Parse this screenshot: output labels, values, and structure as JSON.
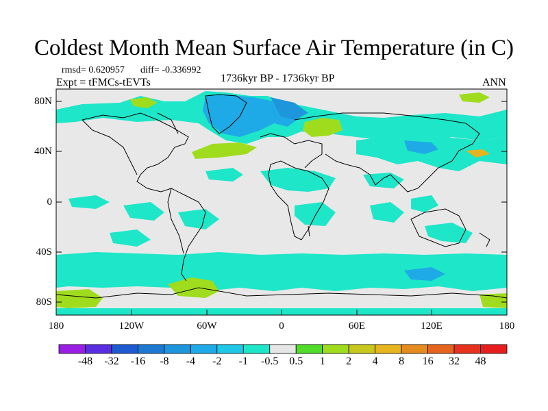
{
  "title": "Coldest Month Mean Surface Air Temperature (in C)",
  "stats": {
    "rmsd_label": "rmsd= 0.620957",
    "diff_label": "diff= -0.336992"
  },
  "experiment": "Expt = tFMCs-tEVTs",
  "period": "1736kyr BP - 1736kyr BP",
  "season": "ANN",
  "lat_labels": [
    "80N",
    "40N",
    "0",
    "40S",
    "80S"
  ],
  "lon_labels": [
    "180",
    "120W",
    "60W",
    "0",
    "60E",
    "120E",
    "180"
  ],
  "colorbar": {
    "labels": [
      "-48",
      "-32",
      "-16",
      "-8",
      "-4",
      "-2",
      "-1",
      "-0.5",
      "0.5",
      "1",
      "2",
      "4",
      "8",
      "16",
      "32",
      "48"
    ],
    "colors": [
      "#9a1ee6",
      "#5a2ee0",
      "#1e5ad2",
      "#1e78d2",
      "#1e96dc",
      "#1eaae6",
      "#1ec8e6",
      "#1ee6c8",
      "#e6e6e6",
      "#50dc28",
      "#a0dc1e",
      "#c8c81e",
      "#e6b41e",
      "#e68c1e",
      "#e6641e",
      "#e6321e",
      "#e61e1e"
    ]
  }
}
